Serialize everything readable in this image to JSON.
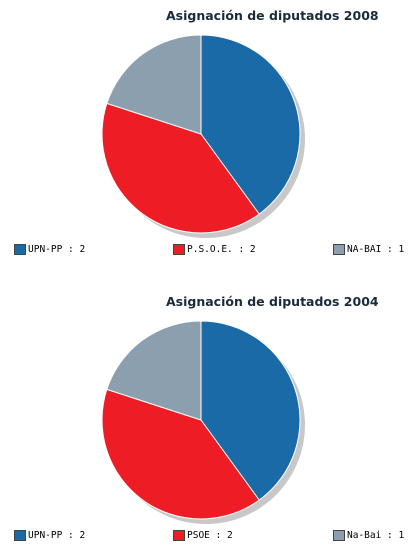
{
  "chart_data": [
    {
      "type": "pie",
      "title": "Asignación de diputados 2008",
      "series": [
        {
          "name": "UPN-PP",
          "value": 2,
          "color": "#1a6aa8"
        },
        {
          "name": "P.S.O.E.",
          "value": 2,
          "color": "#ee1c25"
        },
        {
          "name": "NA-BAI",
          "value": 1,
          "color": "#8c9fae"
        }
      ],
      "legend": [
        "UPN-PP : 2",
        "P.S.O.E. : 2",
        "NA-BAI : 1"
      ]
    },
    {
      "type": "pie",
      "title": "Asignación de diputados 2004",
      "series": [
        {
          "name": "UPN-PP",
          "value": 2,
          "color": "#1a6aa8"
        },
        {
          "name": "PSOE",
          "value": 2,
          "color": "#ee1c25"
        },
        {
          "name": "Na-Bai",
          "value": 1,
          "color": "#8c9fae"
        }
      ],
      "legend": [
        "UPN-PP : 2",
        "PSOE : 2",
        "Na-Bai : 1"
      ]
    }
  ]
}
